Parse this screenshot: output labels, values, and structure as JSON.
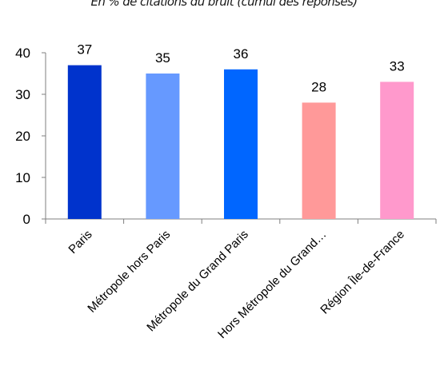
{
  "subtitle": "En % de citations du bruit (cumul des réponses)",
  "chart_data": {
    "type": "bar",
    "title": "",
    "subtitle": "En % de citations du bruit (cumul des réponses)",
    "categories": [
      "Paris",
      "Métropole hors Paris",
      "Métropole du Grand Paris",
      "Hors Métropole du Grand…",
      "Région Île-de-France"
    ],
    "values": [
      37,
      35,
      36,
      28,
      33
    ],
    "colors": [
      "#0033cc",
      "#6699ff",
      "#0066ff",
      "#ff9999",
      "#ff99cc"
    ],
    "ylim": [
      0,
      40
    ],
    "yticks": [
      0,
      10,
      20,
      30,
      40
    ],
    "xlabel": "",
    "ylabel": "",
    "grid": false,
    "legend": "none"
  }
}
